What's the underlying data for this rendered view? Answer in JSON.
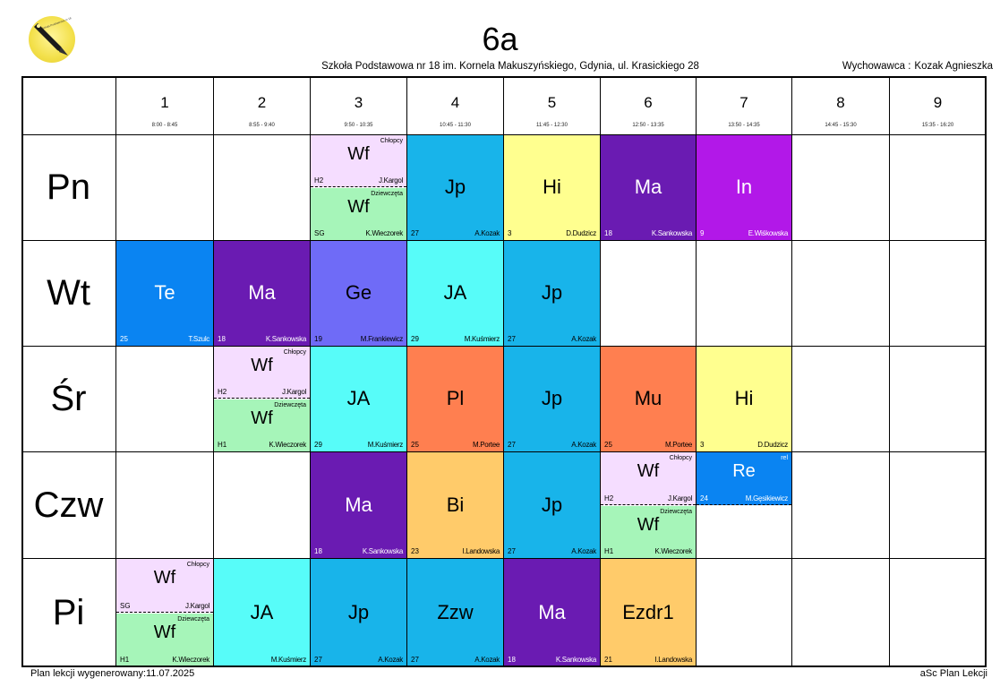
{
  "header": {
    "logo_text": "Szkoła Podstawowa nr 18",
    "class_name": "6a",
    "school": "Szkoła Podstawowa nr 18 im. Kornela Makuszyńskiego, Gdynia, ul. Krasickiego 28",
    "homeroom_label": "Wychowawca :",
    "homeroom_name": "Kozak Agnieszka"
  },
  "periods": [
    {
      "num": "1",
      "time": "8:00 - 8:45"
    },
    {
      "num": "2",
      "time": "8:55 - 9:40"
    },
    {
      "num": "3",
      "time": "9:50 - 10:35"
    },
    {
      "num": "4",
      "time": "10:45 - 11:30"
    },
    {
      "num": "5",
      "time": "11:45 - 12:30"
    },
    {
      "num": "6",
      "time": "12:50 - 13:35"
    },
    {
      "num": "7",
      "time": "13:50 - 14:35"
    },
    {
      "num": "8",
      "time": "14:45 - 15:30"
    },
    {
      "num": "9",
      "time": "15:35 - 16:20"
    }
  ],
  "days": [
    "Pn",
    "Wt",
    "Śr",
    "Czw",
    "Pi"
  ],
  "lessons": [
    {
      "day": 0,
      "period": 2,
      "color": "#f5ddff",
      "subject": "Wf",
      "group": "Chłopcy",
      "room": "H2",
      "teacher": "J.Kargol",
      "half": "top"
    },
    {
      "day": 0,
      "period": 2,
      "color": "#a6f5b9",
      "subject": "Wf",
      "group": "Dziewczęta",
      "room": "SG",
      "teacher": "K.Wieczorek",
      "half": "bottom"
    },
    {
      "day": 0,
      "period": 3,
      "color": "#18b4ea",
      "subject": "Jp",
      "room": "27",
      "teacher": "A.Kozak"
    },
    {
      "day": 0,
      "period": 4,
      "color": "#ffff8f",
      "subject": "Hi",
      "room": "3",
      "teacher": "D.Dudzicz"
    },
    {
      "day": 0,
      "period": 5,
      "color": "#6a1bb2",
      "subject": "Ma",
      "room": "18",
      "teacher": "K.Sankowska"
    },
    {
      "day": 0,
      "period": 6,
      "color": "#b218e8",
      "subject": "In",
      "room": "9",
      "teacher": "E.Wiśkowska"
    },
    {
      "day": 1,
      "period": 0,
      "color": "#0a84f2",
      "subject": "Te",
      "room": "25",
      "teacher": "T.Szulc"
    },
    {
      "day": 1,
      "period": 1,
      "color": "#6a1bb2",
      "subject": "Ma",
      "room": "18",
      "teacher": "K.Sankowska"
    },
    {
      "day": 1,
      "period": 2,
      "color": "#6f6bf7",
      "subject": "Ge",
      "room": "19",
      "teacher": "M.Frankiewicz"
    },
    {
      "day": 1,
      "period": 3,
      "color": "#57fcf9",
      "subject": "JA",
      "room": "29",
      "teacher": "M.Kuśmierz"
    },
    {
      "day": 1,
      "period": 4,
      "color": "#18b4ea",
      "subject": "Jp",
      "room": "27",
      "teacher": "A.Kozak"
    },
    {
      "day": 2,
      "period": 1,
      "color": "#f5ddff",
      "subject": "Wf",
      "group": "Chłopcy",
      "room": "H2",
      "teacher": "J.Kargol",
      "half": "top"
    },
    {
      "day": 2,
      "period": 1,
      "color": "#a6f5b9",
      "subject": "Wf",
      "group": "Dziewczęta",
      "room": "H1",
      "teacher": "K.Wieczorek",
      "half": "bottom"
    },
    {
      "day": 2,
      "period": 2,
      "color": "#57fcf9",
      "subject": "JA",
      "room": "29",
      "teacher": "M.Kuśmierz"
    },
    {
      "day": 2,
      "period": 3,
      "color": "#ff7f50",
      "subject": "Pl",
      "room": "25",
      "teacher": "M.Portee"
    },
    {
      "day": 2,
      "period": 4,
      "color": "#18b4ea",
      "subject": "Jp",
      "room": "27",
      "teacher": "A.Kozak"
    },
    {
      "day": 2,
      "period": 5,
      "color": "#ff7f50",
      "subject": "Mu",
      "room": "25",
      "teacher": "M.Portee"
    },
    {
      "day": 2,
      "period": 6,
      "color": "#ffff8f",
      "subject": "Hi",
      "room": "3",
      "teacher": "D.Dudzicz"
    },
    {
      "day": 3,
      "period": 2,
      "color": "#6a1bb2",
      "subject": "Ma",
      "room": "18",
      "teacher": "K.Sankowska"
    },
    {
      "day": 3,
      "period": 3,
      "color": "#ffcb6a",
      "subject": "Bi",
      "room": "23",
      "teacher": "I.Landowska"
    },
    {
      "day": 3,
      "period": 4,
      "color": "#18b4ea",
      "subject": "Jp",
      "room": "27",
      "teacher": "A.Kozak"
    },
    {
      "day": 3,
      "period": 5,
      "color": "#f5ddff",
      "subject": "Wf",
      "group": "Chłopcy",
      "room": "H2",
      "teacher": "J.Kargol",
      "half": "top"
    },
    {
      "day": 3,
      "period": 5,
      "color": "#a6f5b9",
      "subject": "Wf",
      "group": "Dziewczęta",
      "room": "H1",
      "teacher": "K.Wieczorek",
      "half": "bottom"
    },
    {
      "day": 3,
      "period": 6,
      "color": "#0a84f2",
      "subject": "Re",
      "group": "rel",
      "room": "24",
      "teacher": "M.Gęsikiewicz",
      "half": "top"
    },
    {
      "day": 4,
      "period": 0,
      "color": "#f5ddff",
      "subject": "Wf",
      "group": "Chłopcy",
      "room": "SG",
      "teacher": "J.Kargol",
      "half": "top"
    },
    {
      "day": 4,
      "period": 0,
      "color": "#a6f5b9",
      "subject": "Wf",
      "group": "Dziewczęta",
      "room": "H1",
      "teacher": "K.Wieczorek",
      "half": "bottom"
    },
    {
      "day": 4,
      "period": 1,
      "color": "#57fcf9",
      "subject": "JA",
      "room": "",
      "teacher": "M.Kuśmierz"
    },
    {
      "day": 4,
      "period": 2,
      "color": "#18b4ea",
      "subject": "Jp",
      "room": "27",
      "teacher": "A.Kozak"
    },
    {
      "day": 4,
      "period": 3,
      "color": "#18b4ea",
      "subject": "Zzw",
      "room": "27",
      "teacher": "A.Kozak"
    },
    {
      "day": 4,
      "period": 4,
      "color": "#6a1bb2",
      "subject": "Ma",
      "room": "18",
      "teacher": "K.Sankowska"
    },
    {
      "day": 4,
      "period": 5,
      "color": "#ffcb6a",
      "subject": "Ezdr1",
      "room": "21",
      "teacher": "I.Landowska"
    }
  ],
  "footer": {
    "generated": "Plan lekcji wygenerowany:11.07.2025",
    "brand": "aSc Plan Lekcji"
  }
}
